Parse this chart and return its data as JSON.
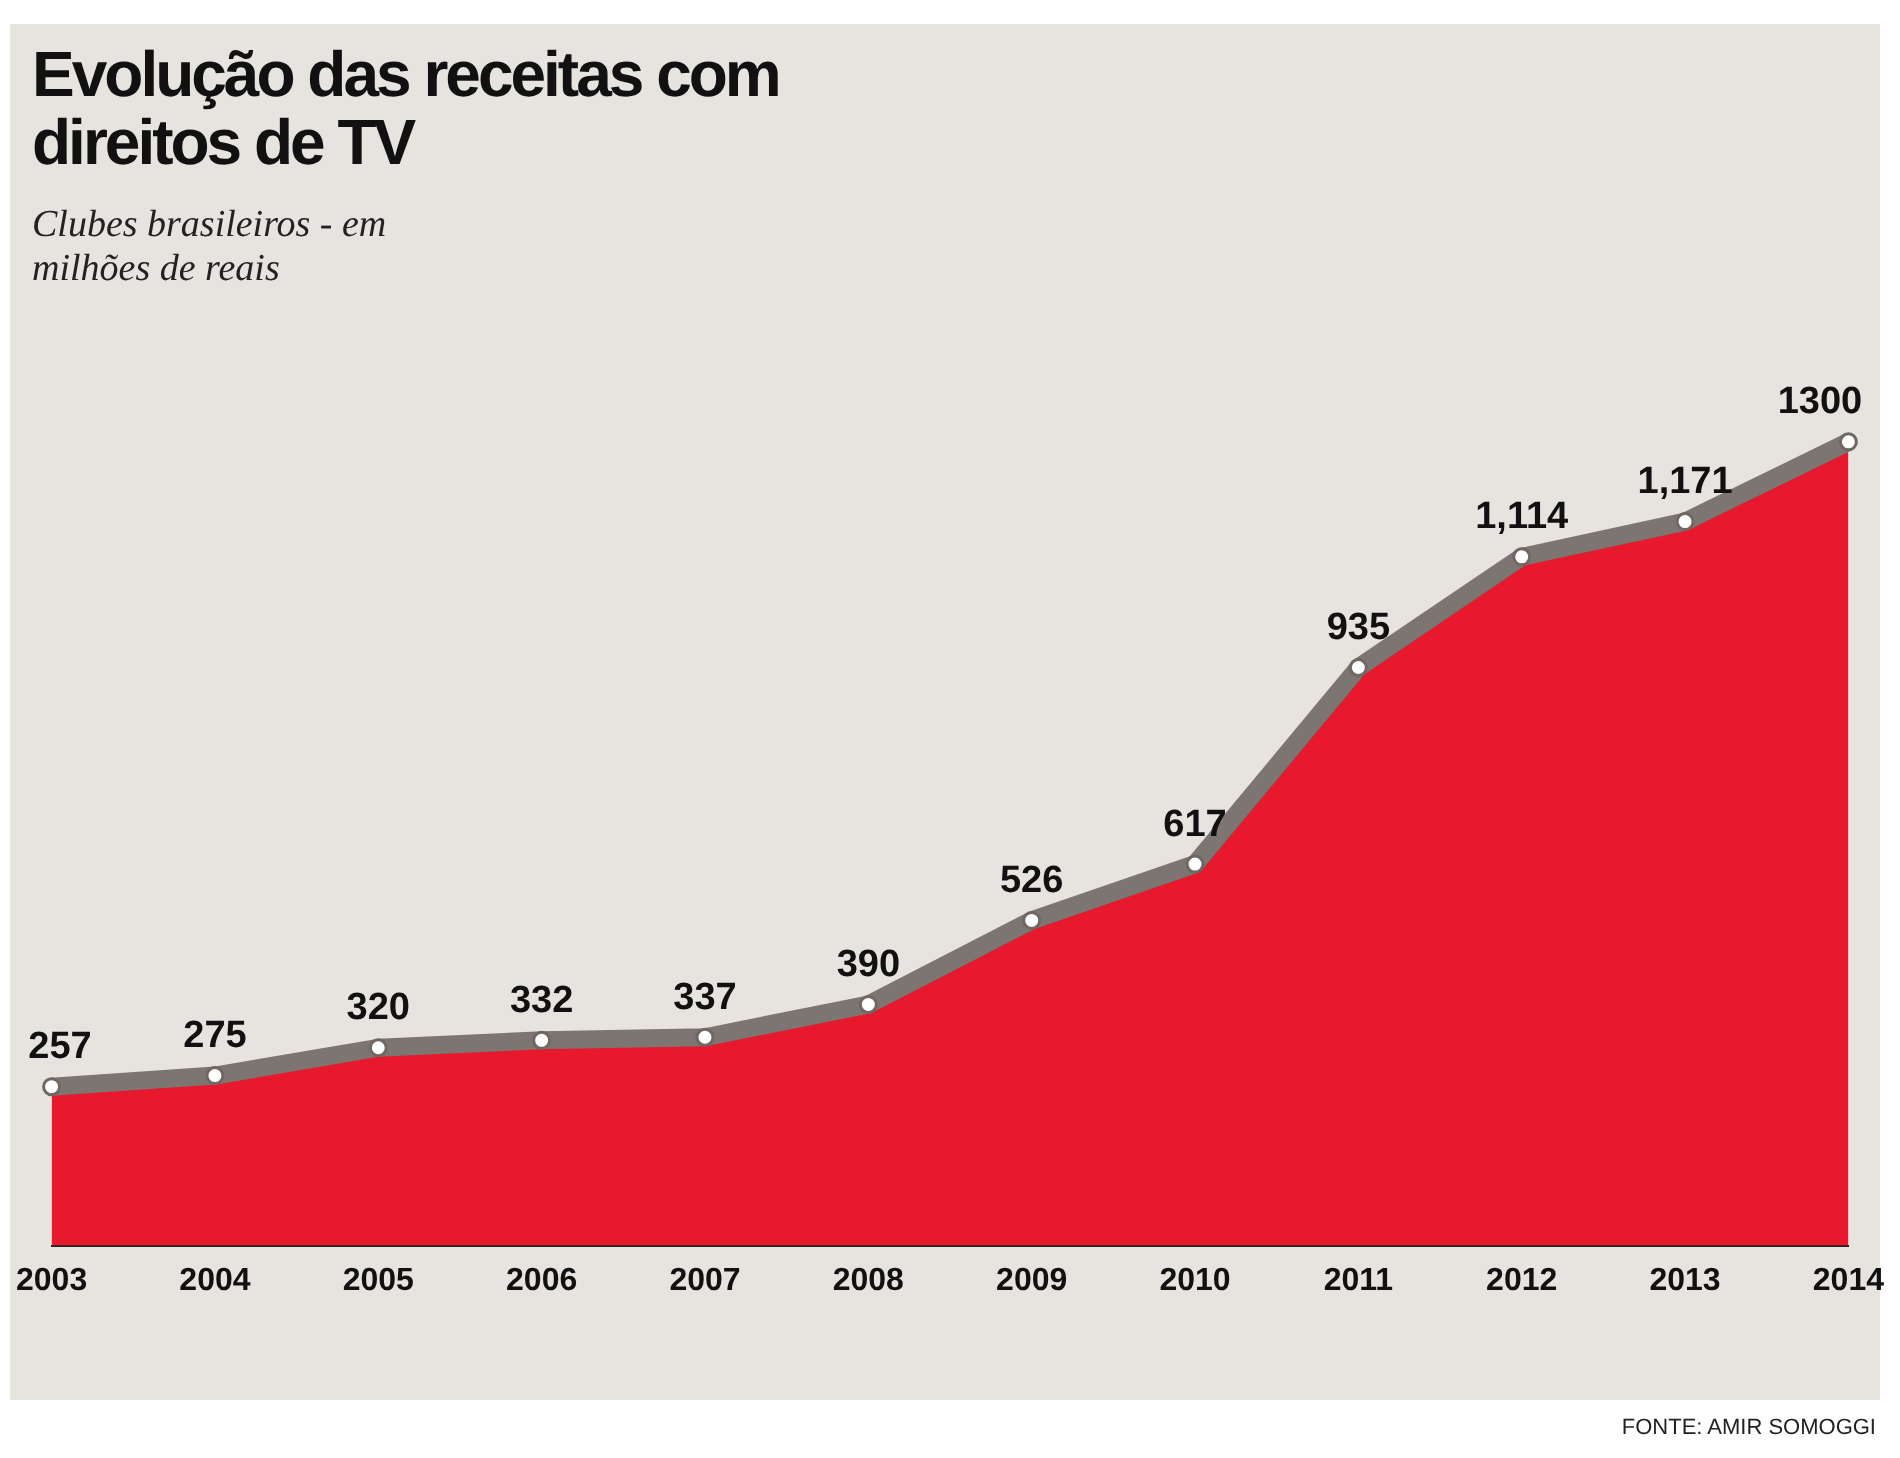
{
  "chart_data": {
    "type": "area",
    "title": "Evolução das receitas com direitos de TV",
    "subtitle": "Clubes brasileiros - em milhões de reais",
    "categories": [
      "2003",
      "2004",
      "2005",
      "2006",
      "2007",
      "2008",
      "2009",
      "2010",
      "2011",
      "2012",
      "2013",
      "2014"
    ],
    "series": [
      {
        "color": "#e8192c",
        "values": [
          257,
          275,
          320,
          332,
          337,
          390,
          526,
          617,
          935,
          1114,
          1171,
          1300
        ],
        "value_labels": [
          "257",
          "275",
          "320",
          "332",
          "337",
          "390",
          "526",
          "617",
          "935",
          "1,114",
          "1,171",
          "1300"
        ]
      }
    ],
    "annotations": [
      "FONTE: AMIR SOMOGGI"
    ],
    "marker": "circle",
    "grid": false,
    "legend": false
  }
}
